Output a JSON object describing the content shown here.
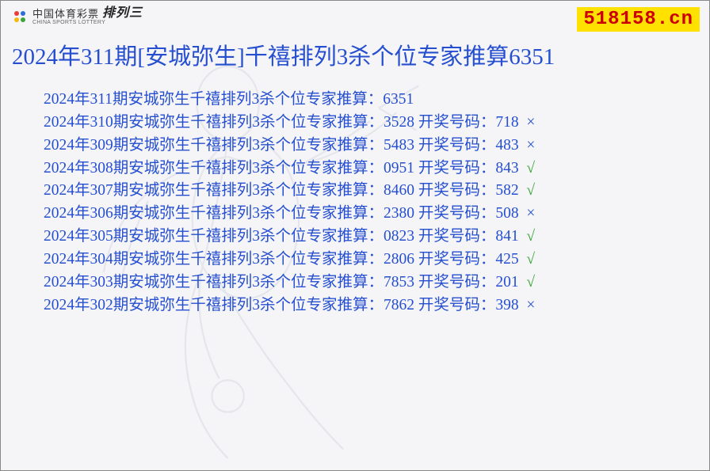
{
  "header": {
    "logo_cn": "中国体育彩票",
    "logo_en": "CHINA SPORTS LOTTERY",
    "logo_suffix": "排列三",
    "site": "518158.cn"
  },
  "title": "2024年311期[安城弥生]千禧排列3杀个位专家推算6351",
  "prefix": "2024年",
  "row_mid": "期安城弥生千禧排列3杀个位专家推算：",
  "draw_label": " 开奖号码：",
  "rows": [
    {
      "period": "311",
      "guess": "6351",
      "draw": "",
      "mark": ""
    },
    {
      "period": "310",
      "guess": "3528",
      "draw": "718",
      "mark": "×"
    },
    {
      "period": "309",
      "guess": "5483",
      "draw": "483",
      "mark": "×"
    },
    {
      "period": "308",
      "guess": "0951",
      "draw": "843",
      "mark": "√"
    },
    {
      "period": "307",
      "guess": "8460",
      "draw": "582",
      "mark": "√"
    },
    {
      "period": "306",
      "guess": "2380",
      "draw": "508",
      "mark": "×"
    },
    {
      "period": "305",
      "guess": "0823",
      "draw": "841",
      "mark": "√"
    },
    {
      "period": "304",
      "guess": "2806",
      "draw": "425",
      "mark": "√"
    },
    {
      "period": "303",
      "guess": "7853",
      "draw": "201",
      "mark": "√"
    },
    {
      "period": "302",
      "guess": "7862",
      "draw": "398",
      "mark": "×"
    }
  ],
  "colors": {
    "text_blue": "#264fd0",
    "site_bg": "#ffe100",
    "site_fg": "#cc0000",
    "mark_yes": "#3aa53a",
    "page_bg": "#f5f5f7"
  }
}
